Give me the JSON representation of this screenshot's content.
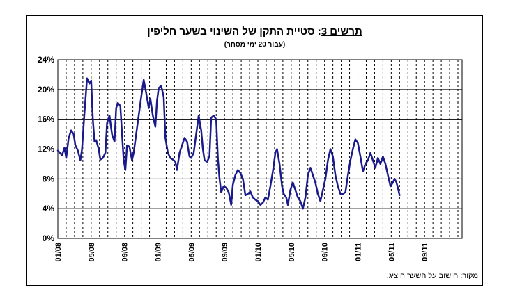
{
  "title": {
    "lead": "תרשים 3",
    "text": ": סטיית התקן של השינוי בשער חליפין"
  },
  "subtitle": "(עבור 20 ימי מסחר)",
  "source": {
    "lead": "מקור",
    "text": ": חישוב על השער היציג."
  },
  "chart_data": {
    "type": "line",
    "ylim": [
      0,
      24
    ],
    "y_ticks": [
      "0%",
      "4%",
      "8%",
      "12%",
      "16%",
      "20%",
      "24%"
    ],
    "y_tick_values": [
      0,
      4,
      8,
      12,
      16,
      20,
      24
    ],
    "x_ticks": [
      "01/08",
      "05/08",
      "09/08",
      "01/09",
      "05/09",
      "09/09",
      "01/10",
      "05/10",
      "09/10",
      "01/11",
      "05/11",
      "09/11"
    ],
    "x_range_months": [
      0,
      48.5
    ],
    "grid": {
      "y": true,
      "x": "dashed"
    },
    "line_color": "#1a1a8c",
    "series": [
      {
        "points": [
          [
            0.0,
            11.8
          ],
          [
            0.5,
            11.2
          ],
          [
            0.8,
            12.2
          ],
          [
            1.0,
            10.8
          ],
          [
            1.3,
            13.5
          ],
          [
            1.6,
            14.5
          ],
          [
            1.9,
            14.0
          ],
          [
            2.1,
            12.5
          ],
          [
            2.4,
            11.8
          ],
          [
            2.7,
            10.5
          ],
          [
            2.9,
            12.0
          ],
          [
            3.2,
            17.0
          ],
          [
            3.5,
            21.5
          ],
          [
            3.8,
            20.8
          ],
          [
            4.0,
            21.2
          ],
          [
            4.2,
            16.0
          ],
          [
            4.4,
            13.0
          ],
          [
            4.6,
            13.2
          ],
          [
            4.9,
            12.0
          ],
          [
            5.1,
            10.6
          ],
          [
            5.4,
            10.8
          ],
          [
            5.7,
            11.5
          ],
          [
            5.9,
            15.5
          ],
          [
            6.2,
            16.5
          ],
          [
            6.5,
            14.0
          ],
          [
            6.8,
            13.0
          ],
          [
            7.0,
            17.5
          ],
          [
            7.2,
            18.2
          ],
          [
            7.5,
            17.8
          ],
          [
            7.7,
            14.0
          ],
          [
            7.9,
            10.5
          ],
          [
            8.1,
            9.2
          ],
          [
            8.3,
            12.5
          ],
          [
            8.6,
            12.3
          ],
          [
            8.9,
            10.5
          ],
          [
            9.1,
            11.5
          ],
          [
            9.4,
            14.0
          ],
          [
            9.7,
            16.5
          ],
          [
            10.0,
            19.0
          ],
          [
            10.3,
            21.3
          ],
          [
            10.6,
            19.5
          ],
          [
            10.9,
            17.5
          ],
          [
            11.1,
            18.8
          ],
          [
            11.4,
            16.5
          ],
          [
            11.7,
            15.0
          ],
          [
            11.9,
            18.5
          ],
          [
            12.1,
            20.2
          ],
          [
            12.4,
            20.5
          ],
          [
            12.7,
            19.0
          ],
          [
            12.9,
            13.5
          ],
          [
            13.2,
            11.5
          ],
          [
            13.5,
            10.8
          ],
          [
            13.8,
            10.6
          ],
          [
            14.1,
            10.3
          ],
          [
            14.3,
            9.2
          ],
          [
            14.6,
            11.5
          ],
          [
            14.9,
            12.5
          ],
          [
            15.2,
            13.5
          ],
          [
            15.5,
            13.0
          ],
          [
            15.8,
            11.0
          ],
          [
            16.0,
            10.8
          ],
          [
            16.3,
            11.5
          ],
          [
            16.6,
            14.0
          ],
          [
            16.9,
            16.5
          ],
          [
            17.2,
            14.5
          ],
          [
            17.4,
            12.0
          ],
          [
            17.6,
            10.5
          ],
          [
            17.9,
            10.3
          ],
          [
            18.2,
            11.0
          ],
          [
            18.4,
            16.2
          ],
          [
            18.7,
            16.5
          ],
          [
            19.0,
            16.0
          ],
          [
            19.2,
            10.8
          ],
          [
            19.4,
            8.0
          ],
          [
            19.6,
            6.2
          ],
          [
            19.9,
            7.0
          ],
          [
            20.2,
            6.8
          ],
          [
            20.5,
            6.2
          ],
          [
            20.8,
            4.5
          ],
          [
            21.0,
            7.2
          ],
          [
            21.3,
            8.5
          ],
          [
            21.6,
            9.2
          ],
          [
            21.9,
            8.8
          ],
          [
            22.2,
            8.0
          ],
          [
            22.5,
            5.8
          ],
          [
            22.8,
            6.0
          ],
          [
            23.1,
            6.3
          ],
          [
            23.4,
            5.5
          ],
          [
            23.7,
            5.2
          ],
          [
            24.0,
            5.0
          ],
          [
            24.3,
            4.5
          ],
          [
            24.6,
            4.8
          ],
          [
            24.9,
            5.5
          ],
          [
            25.2,
            5.2
          ],
          [
            25.5,
            7.0
          ],
          [
            25.8,
            9.0
          ],
          [
            26.1,
            11.5
          ],
          [
            26.3,
            12.0
          ],
          [
            26.6,
            10.0
          ],
          [
            26.9,
            7.0
          ],
          [
            27.1,
            6.0
          ],
          [
            27.4,
            5.5
          ],
          [
            27.6,
            4.5
          ],
          [
            27.9,
            6.5
          ],
          [
            28.2,
            7.5
          ],
          [
            28.5,
            6.5
          ],
          [
            28.8,
            5.5
          ],
          [
            29.1,
            5.0
          ],
          [
            29.4,
            4.0
          ],
          [
            29.7,
            5.5
          ],
          [
            30.0,
            8.5
          ],
          [
            30.3,
            9.5
          ],
          [
            30.6,
            8.5
          ],
          [
            30.9,
            7.5
          ],
          [
            31.2,
            6.0
          ],
          [
            31.5,
            5.0
          ],
          [
            31.8,
            6.5
          ],
          [
            32.1,
            8.0
          ],
          [
            32.4,
            10.5
          ],
          [
            32.7,
            12.0
          ],
          [
            33.0,
            11.0
          ],
          [
            33.3,
            8.5
          ],
          [
            33.6,
            7.0
          ],
          [
            33.9,
            6.0
          ],
          [
            34.2,
            6.0
          ],
          [
            34.5,
            6.2
          ],
          [
            34.8,
            8.5
          ],
          [
            35.1,
            10.5
          ],
          [
            35.4,
            12.0
          ],
          [
            35.7,
            13.3
          ],
          [
            36.0,
            12.8
          ],
          [
            36.3,
            11.0
          ],
          [
            36.6,
            9.0
          ],
          [
            36.9,
            10.0
          ],
          [
            37.2,
            10.5
          ],
          [
            37.5,
            11.5
          ],
          [
            37.8,
            10.5
          ],
          [
            38.1,
            9.5
          ],
          [
            38.4,
            10.8
          ],
          [
            38.7,
            10.0
          ],
          [
            39.0,
            11.0
          ],
          [
            39.3,
            10.0
          ],
          [
            39.6,
            8.5
          ],
          [
            39.9,
            7.0
          ],
          [
            40.2,
            7.5
          ],
          [
            40.4,
            8.0
          ],
          [
            40.6,
            7.6
          ],
          [
            40.8,
            6.8
          ],
          [
            41.0,
            5.8
          ]
        ]
      }
    ]
  }
}
